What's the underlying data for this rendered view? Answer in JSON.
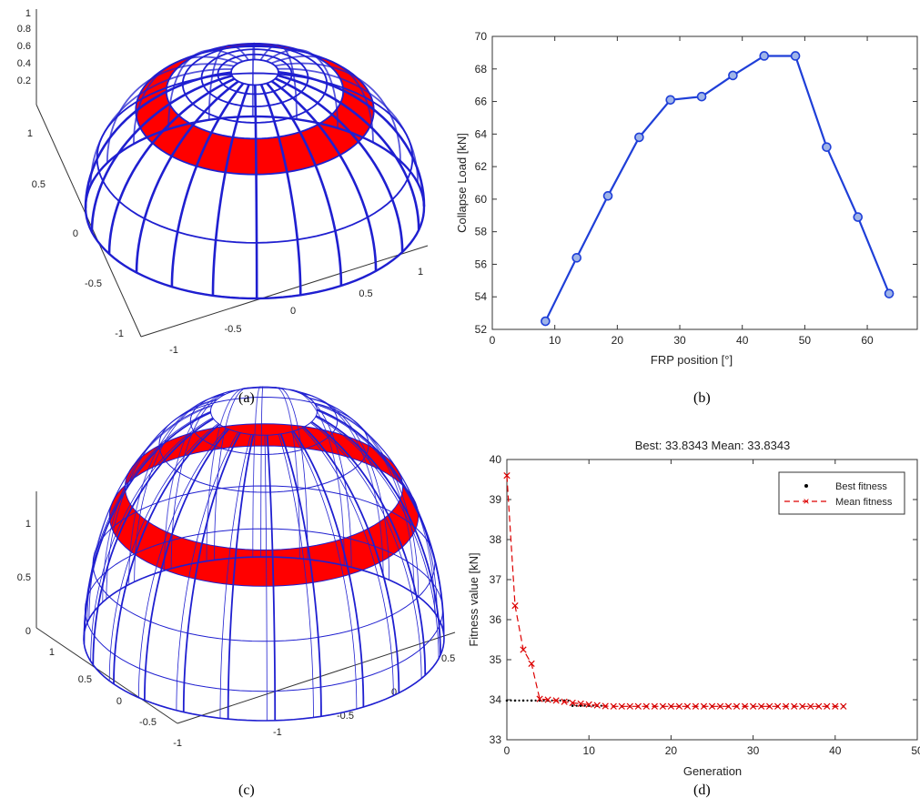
{
  "captions": {
    "a": "(a)",
    "b": "(b)",
    "c": "(c)",
    "d": "(d)"
  },
  "colors": {
    "mesh": "#1f1fd0",
    "frp": "#ff0000",
    "line": "#1f3fd8",
    "mean": "#dd0000",
    "best": "#000000"
  },
  "panel_a": {
    "z_ticks": [
      "1",
      "0.8",
      "0.6",
      "0.4",
      "0.2"
    ],
    "left_ticks": [
      "1",
      "0.5",
      "0",
      "-0.5",
      "-1"
    ],
    "front_ticks": [
      "-1",
      "-0.5",
      "0"
    ],
    "right_ticks": [
      "0.5",
      "1"
    ]
  },
  "panel_c": {
    "z_ticks": [
      "1",
      "0.5",
      "0"
    ],
    "left_ticks": [
      "1",
      "0.5",
      "0",
      "-0.5",
      "-1"
    ],
    "right_ticks": [
      "0.5",
      "0",
      "-0.5",
      "-1"
    ]
  },
  "chart_data": [
    {
      "panel": "b",
      "type": "line",
      "xlabel": "FRP position [°]",
      "ylabel": "Collapse Load [kN]",
      "xlim": [
        0,
        68
      ],
      "ylim": [
        52,
        70
      ],
      "xticks": [
        0,
        10,
        20,
        30,
        40,
        50,
        60
      ],
      "yticks": [
        52,
        54,
        56,
        58,
        60,
        62,
        64,
        66,
        68,
        70
      ],
      "series": [
        {
          "x": [
            8.5,
            13.5,
            18.5,
            23.5,
            28.5,
            33.5,
            38.5,
            43.5,
            48.5,
            53.5,
            58.5,
            63.5
          ],
          "y": [
            52.5,
            56.4,
            60.2,
            63.8,
            66.1,
            66.3,
            67.6,
            68.8,
            68.8,
            63.2,
            58.9,
            54.2
          ]
        }
      ]
    },
    {
      "panel": "d",
      "type": "line",
      "title": "Best: 33.8343 Mean: 33.8343",
      "xlabel": "Generation",
      "ylabel": "Fitness value [kN]",
      "xlim": [
        0,
        50
      ],
      "ylim": [
        33,
        40
      ],
      "xticks": [
        0,
        10,
        20,
        30,
        40,
        50
      ],
      "xtick_labels": [
        "0",
        "10",
        "20",
        "30",
        "40",
        "50"
      ],
      "yticks": [
        33,
        34,
        35,
        36,
        37,
        38,
        39,
        40
      ],
      "legend": [
        "Best fitness",
        "Mean fitness"
      ],
      "legend_position": "top-right",
      "series": [
        {
          "name": "Best fitness",
          "x": [
            0,
            1,
            2,
            3,
            4,
            5,
            6,
            7,
            8,
            9,
            10,
            11,
            12,
            13,
            14,
            15,
            16,
            17,
            18,
            19,
            20,
            21,
            22,
            23,
            24,
            25,
            26,
            27,
            28,
            29,
            30,
            31,
            32,
            33,
            34,
            35,
            36,
            37,
            38,
            39,
            40,
            41
          ],
          "y": [
            33.98,
            33.98,
            33.98,
            33.98,
            33.98,
            33.98,
            33.98,
            33.98,
            33.85,
            33.85,
            33.85,
            33.85,
            33.8343,
            33.8343,
            33.8343,
            33.8343,
            33.8343,
            33.8343,
            33.8343,
            33.8343,
            33.8343,
            33.8343,
            33.8343,
            33.8343,
            33.8343,
            33.8343,
            33.8343,
            33.8343,
            33.8343,
            33.8343,
            33.8343,
            33.8343,
            33.8343,
            33.8343,
            33.8343,
            33.8343,
            33.8343,
            33.8343,
            33.8343,
            33.8343,
            33.8343,
            33.8343
          ]
        },
        {
          "name": "Mean fitness",
          "x": [
            0,
            1,
            2,
            3,
            4,
            5,
            6,
            7,
            8,
            9,
            10,
            11,
            12,
            13,
            14,
            15,
            16,
            17,
            18,
            19,
            20,
            21,
            22,
            23,
            24,
            25,
            26,
            27,
            28,
            29,
            30,
            31,
            32,
            33,
            34,
            35,
            36,
            37,
            38,
            39,
            40,
            41
          ],
          "y": [
            39.6,
            36.35,
            35.25,
            34.9,
            34.02,
            34.0,
            33.98,
            33.95,
            33.92,
            33.9,
            33.88,
            33.86,
            33.84,
            33.8343,
            33.8343,
            33.8343,
            33.8343,
            33.8343,
            33.8343,
            33.8343,
            33.8343,
            33.8343,
            33.8343,
            33.8343,
            33.8343,
            33.8343,
            33.8343,
            33.8343,
            33.8343,
            33.8343,
            33.8343,
            33.8343,
            33.8343,
            33.8343,
            33.8343,
            33.8343,
            33.8343,
            33.8343,
            33.8343,
            33.8343,
            33.8343,
            33.8343
          ]
        }
      ]
    }
  ]
}
